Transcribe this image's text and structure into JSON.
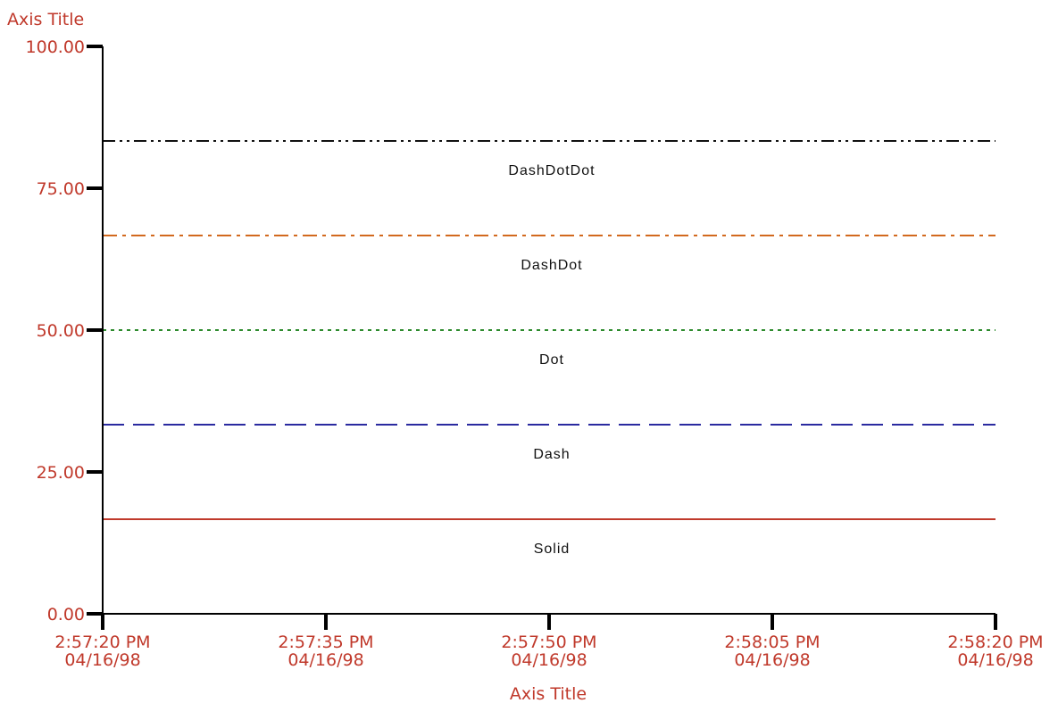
{
  "colors": {
    "label_red": "#c0392b",
    "axis_black": "#000000",
    "text_black": "#111111"
  },
  "chart_data": {
    "type": "line",
    "title": "",
    "xlabel": "Axis Title",
    "ylabel": "Axis Title",
    "ylim": [
      0,
      100
    ],
    "yticks": [
      0,
      25,
      50,
      75,
      100
    ],
    "ytick_labels": [
      "0.00",
      "25.00",
      "50.00",
      "75.00",
      "100.00"
    ],
    "x": [
      "04/16/98 2:57:20 PM",
      "04/16/98 2:58:20 PM"
    ],
    "xlim": [
      "04/16/98 2:57:20 PM",
      "04/16/98 2:58:20 PM"
    ],
    "xticks": [
      {
        "time": "2:57:20 PM",
        "date": "04/16/98"
      },
      {
        "time": "2:57:35 PM",
        "date": "04/16/98"
      },
      {
        "time": "2:57:50 PM",
        "date": "04/16/98"
      },
      {
        "time": "2:58:05 PM",
        "date": "04/16/98"
      },
      {
        "time": "2:58:20 PM",
        "date": "04/16/98"
      }
    ],
    "grid": false,
    "series": [
      {
        "name": "Solid",
        "line_style": "solid",
        "color": "#c0392b",
        "values": [
          16.67,
          16.67
        ]
      },
      {
        "name": "Dash",
        "line_style": "dash",
        "color": "#2a2aa0",
        "values": [
          33.33,
          33.33
        ]
      },
      {
        "name": "Dot",
        "line_style": "dot",
        "color": "#2e8b2e",
        "values": [
          50,
          50
        ]
      },
      {
        "name": "DashDot",
        "line_style": "dashdot",
        "color": "#d2691e",
        "values": [
          66.67,
          66.67
        ]
      },
      {
        "name": "DashDotDot",
        "line_style": "dashdotdot",
        "color": "#111111",
        "values": [
          83.33,
          83.33
        ]
      }
    ]
  }
}
